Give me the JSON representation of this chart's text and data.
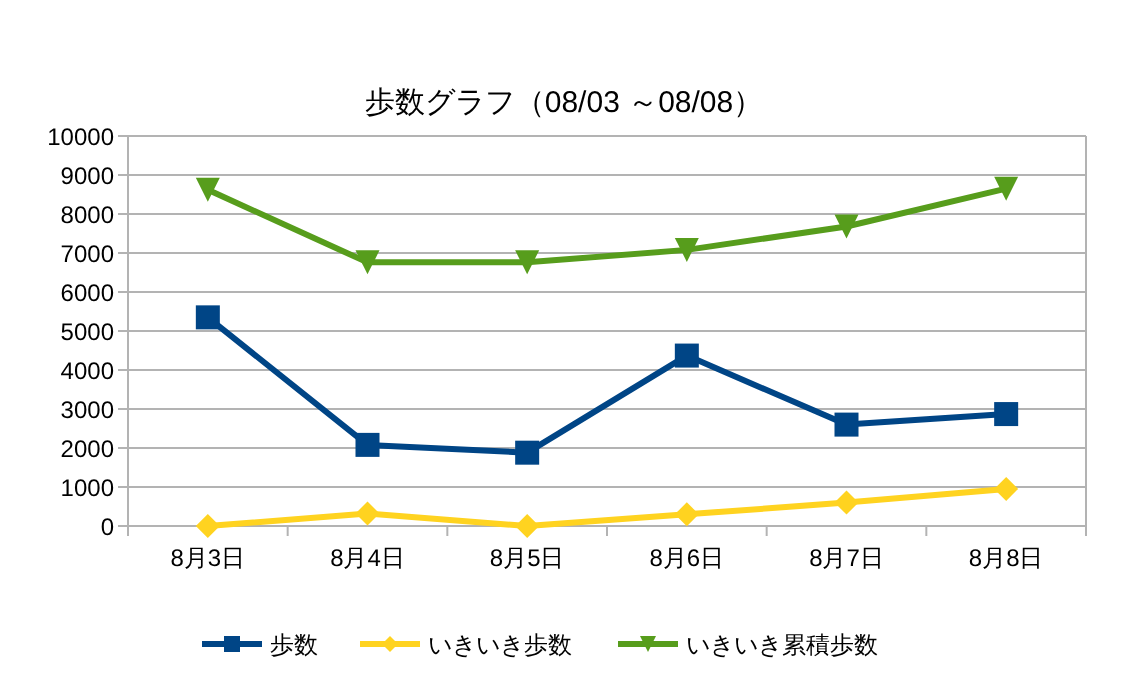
{
  "chart_data": {
    "type": "line",
    "title": "歩数グラフ（08/03 ～08/08）",
    "categories": [
      "8月3日",
      "8月4日",
      "8月5日",
      "8月6日",
      "8月7日",
      "8月8日"
    ],
    "series": [
      {
        "name": "歩数",
        "color": "#004586",
        "marker": "square",
        "values": [
          5350,
          2080,
          1880,
          4370,
          2600,
          2870
        ]
      },
      {
        "name": "いきいき歩数",
        "color": "#ffd320",
        "marker": "diamond",
        "values": [
          0,
          320,
          0,
          300,
          600,
          950
        ]
      },
      {
        "name": "いきいき累積歩数",
        "color": "#579d1c",
        "marker": "triangle",
        "values": [
          8620,
          6760,
          6760,
          7080,
          7680,
          8650
        ]
      }
    ],
    "ylim": [
      0,
      10000
    ],
    "yticks": [
      0,
      1000,
      2000,
      3000,
      4000,
      5000,
      6000,
      7000,
      8000,
      9000,
      10000
    ],
    "grid": "y",
    "legend": "bottom"
  }
}
